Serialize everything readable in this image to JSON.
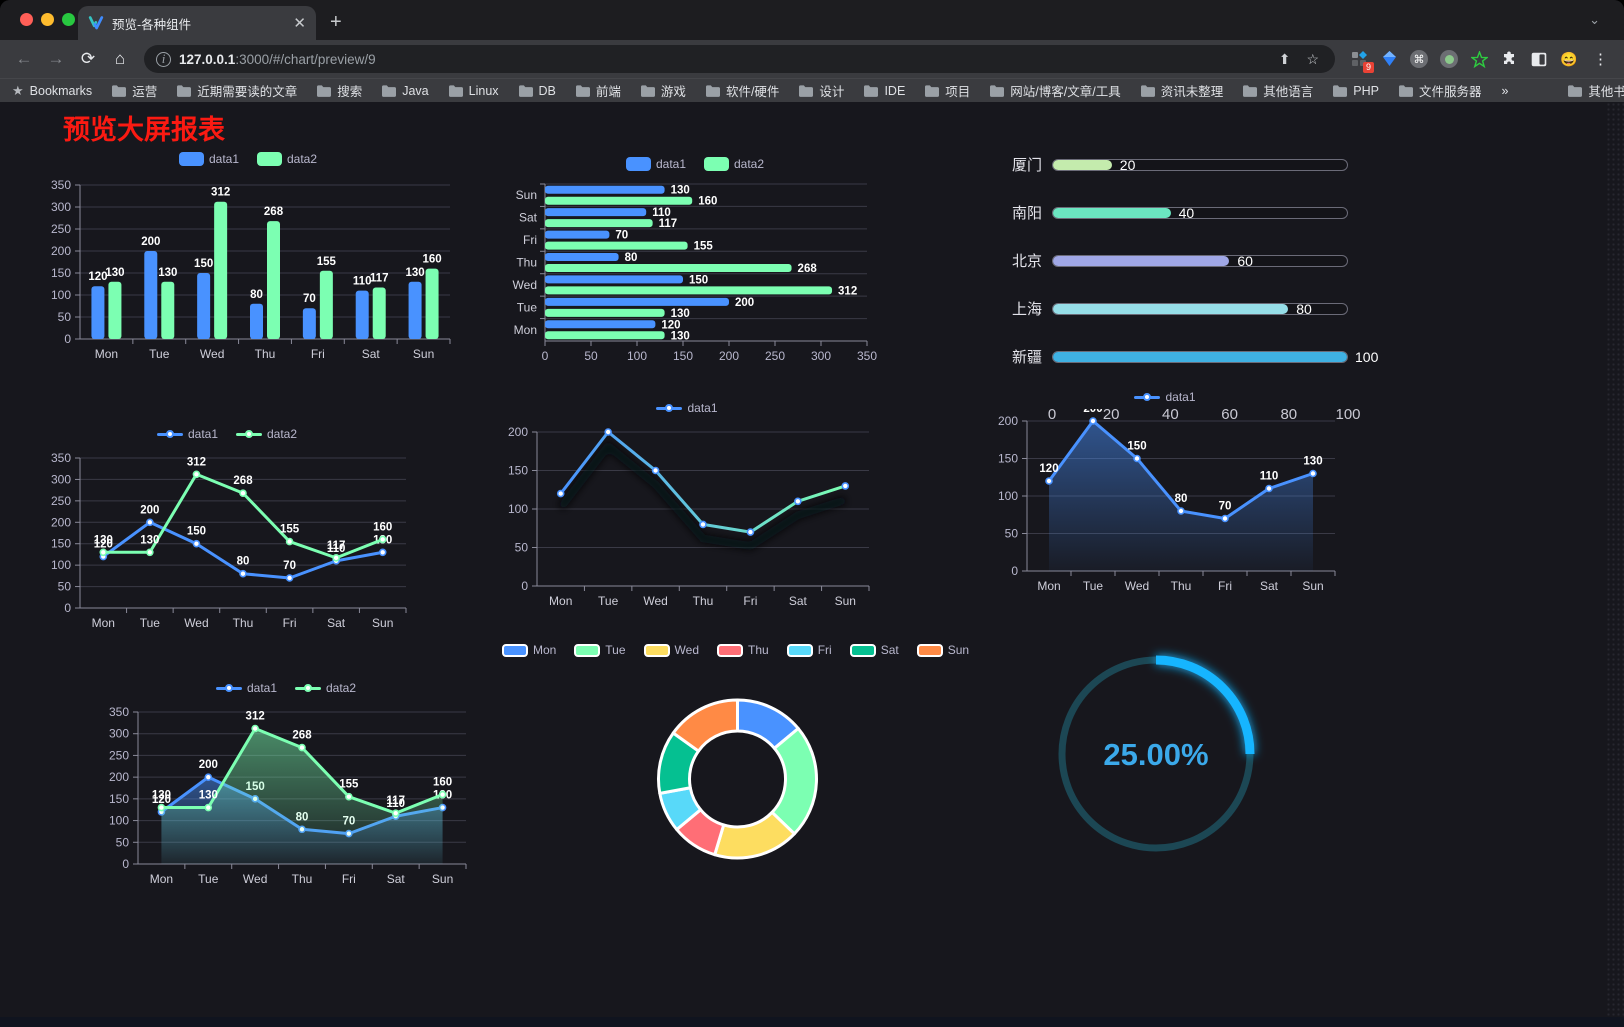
{
  "browser": {
    "tab": {
      "title": "预览-各种组件",
      "close": "✕",
      "new_tab": "+",
      "chevron": "⌄"
    },
    "url": {
      "host": "127.0.0.1",
      "path": ":3000/#/chart/preview/9"
    },
    "toolbar": {
      "back": "←",
      "forward": "→",
      "reload": "⟳",
      "home": "⌂",
      "share": "⬆",
      "star": "☆",
      "menu": "⋮"
    },
    "extensions": {
      "badge": "9",
      "cmd": "⌘",
      "emoji": "😄"
    },
    "bookmarks": [
      "Bookmarks",
      "运营",
      "近期需要读的文章",
      "搜索",
      "Java",
      "Linux",
      "DB",
      "前端",
      "游戏",
      "软件/硬件",
      "设计",
      "IDE",
      "项目",
      "网站/博客/文章/工具",
      "资讯未整理",
      "其他语言",
      "PHP",
      "文件服务器"
    ],
    "bookmarks_overflow": "»",
    "other_bookmarks": "其他书签"
  },
  "page": {
    "title": "预览大屏报表",
    "title_color": "#fb1a12"
  },
  "palette": {
    "dark_theme": [
      "#4992ff",
      "#7cffb2",
      "#fddd60",
      "#ff6e76",
      "#58d9f9",
      "#05c091",
      "#ff8a45"
    ],
    "axis_text": "#b9b8ce",
    "grid_line": "#3a3a46",
    "axis_line": "#8a8a99"
  },
  "chart_data": [
    {
      "id": "grouped-bar",
      "type": "bar",
      "legend_pos": "top",
      "categories": [
        "Mon",
        "Tue",
        "Wed",
        "Thu",
        "Fri",
        "Sat",
        "Sun"
      ],
      "series": [
        {
          "name": "data1",
          "color": "#4992ff",
          "values": [
            120,
            200,
            150,
            80,
            70,
            110,
            130
          ]
        },
        {
          "name": "data2",
          "color": "#7cffb2",
          "values": [
            130,
            130,
            312,
            268,
            155,
            117,
            160
          ]
        }
      ],
      "ylim": [
        0,
        350
      ],
      "ystep": 50,
      "labels": true,
      "grid": true
    },
    {
      "id": "grouped-horizontal-bar",
      "type": "bar-horizontal",
      "legend_pos": "top",
      "categories": [
        "Mon",
        "Tue",
        "Wed",
        "Thu",
        "Fri",
        "Sat",
        "Sun"
      ],
      "display_order_top_to_bottom": [
        "Sun",
        "Sat",
        "Fri",
        "Thu",
        "Wed",
        "Tue",
        "Mon"
      ],
      "series": [
        {
          "name": "data1",
          "color": "#4992ff",
          "values": [
            120,
            200,
            150,
            80,
            70,
            110,
            130
          ]
        },
        {
          "name": "data2",
          "color": "#7cffb2",
          "values": [
            130,
            130,
            312,
            268,
            155,
            117,
            160
          ]
        }
      ],
      "xlim": [
        0,
        350
      ],
      "xstep": 50,
      "labels": true,
      "grid": true
    },
    {
      "id": "progress-bars",
      "type": "bar-progress",
      "categories": [
        "厦门",
        "南阳",
        "北京",
        "上海",
        "新疆"
      ],
      "values": [
        20,
        40,
        60,
        80,
        100
      ],
      "colors": [
        "#c4ebad",
        "#6be6c1",
        "#a0a7e6",
        "#96dee8",
        "#3fb1e3"
      ],
      "xlim": [
        0,
        100
      ],
      "xticks": [
        0,
        20,
        40,
        60,
        80,
        100
      ]
    },
    {
      "id": "two-series-line",
      "type": "line",
      "legend_pos": "top",
      "categories": [
        "Mon",
        "Tue",
        "Wed",
        "Thu",
        "Fri",
        "Sat",
        "Sun"
      ],
      "series": [
        {
          "name": "data1",
          "color": "#4992ff",
          "values": [
            120,
            200,
            150,
            80,
            70,
            110,
            130
          ]
        },
        {
          "name": "data2",
          "color": "#7cffb2",
          "values": [
            130,
            130,
            312,
            268,
            155,
            117,
            160
          ]
        }
      ],
      "ylim": [
        0,
        350
      ],
      "ystep": 50,
      "labels": true,
      "grid": true
    },
    {
      "id": "gradient-line",
      "type": "line-gradient",
      "legend_pos": "top",
      "categories": [
        "Mon",
        "Tue",
        "Wed",
        "Thu",
        "Fri",
        "Sat",
        "Sun"
      ],
      "series": [
        {
          "name": "data1",
          "gradient": [
            "#4992ff",
            "#7cffb2"
          ],
          "color": "#4992ff",
          "values": [
            120,
            200,
            150,
            80,
            70,
            110,
            130
          ]
        }
      ],
      "ylim": [
        0,
        200
      ],
      "ystep": 50,
      "labels": false,
      "grid": true,
      "shadow": true
    },
    {
      "id": "area-line",
      "type": "area",
      "legend_pos": "top",
      "categories": [
        "Mon",
        "Tue",
        "Wed",
        "Thu",
        "Fri",
        "Sat",
        "Sun"
      ],
      "series": [
        {
          "name": "data1",
          "color": "#4992ff",
          "values": [
            120,
            200,
            150,
            80,
            70,
            110,
            130
          ]
        }
      ],
      "ylim": [
        0,
        200
      ],
      "ystep": 50,
      "labels": true,
      "grid": true
    },
    {
      "id": "two-series-area",
      "type": "area",
      "legend_pos": "top",
      "categories": [
        "Mon",
        "Tue",
        "Wed",
        "Thu",
        "Fri",
        "Sat",
        "Sun"
      ],
      "series": [
        {
          "name": "data1",
          "color": "#4992ff",
          "values": [
            120,
            200,
            150,
            80,
            70,
            110,
            130
          ]
        },
        {
          "name": "data2",
          "color": "#7cffb2",
          "values": [
            130,
            130,
            312,
            268,
            155,
            117,
            160
          ]
        }
      ],
      "ylim": [
        0,
        350
      ],
      "ystep": 50,
      "labels": true,
      "grid": true
    },
    {
      "id": "donut",
      "type": "pie",
      "legend_pos": "top",
      "categories": [
        "Mon",
        "Tue",
        "Wed",
        "Thu",
        "Fri",
        "Sat",
        "Sun"
      ],
      "values": [
        120,
        200,
        150,
        80,
        70,
        110,
        130
      ],
      "colors": [
        "#4992ff",
        "#7cffb2",
        "#fddd60",
        "#ff6e76",
        "#58d9f9",
        "#05c091",
        "#ff8a45"
      ],
      "inner_radius_ratio": 0.6,
      "border_color": "#ffffff"
    },
    {
      "id": "gauge",
      "type": "gauge",
      "percent": 25,
      "label": "25.00%",
      "progress_color": "#19b5ff",
      "track_color": "#1c4754",
      "text_color": "#3ba9ea"
    }
  ]
}
